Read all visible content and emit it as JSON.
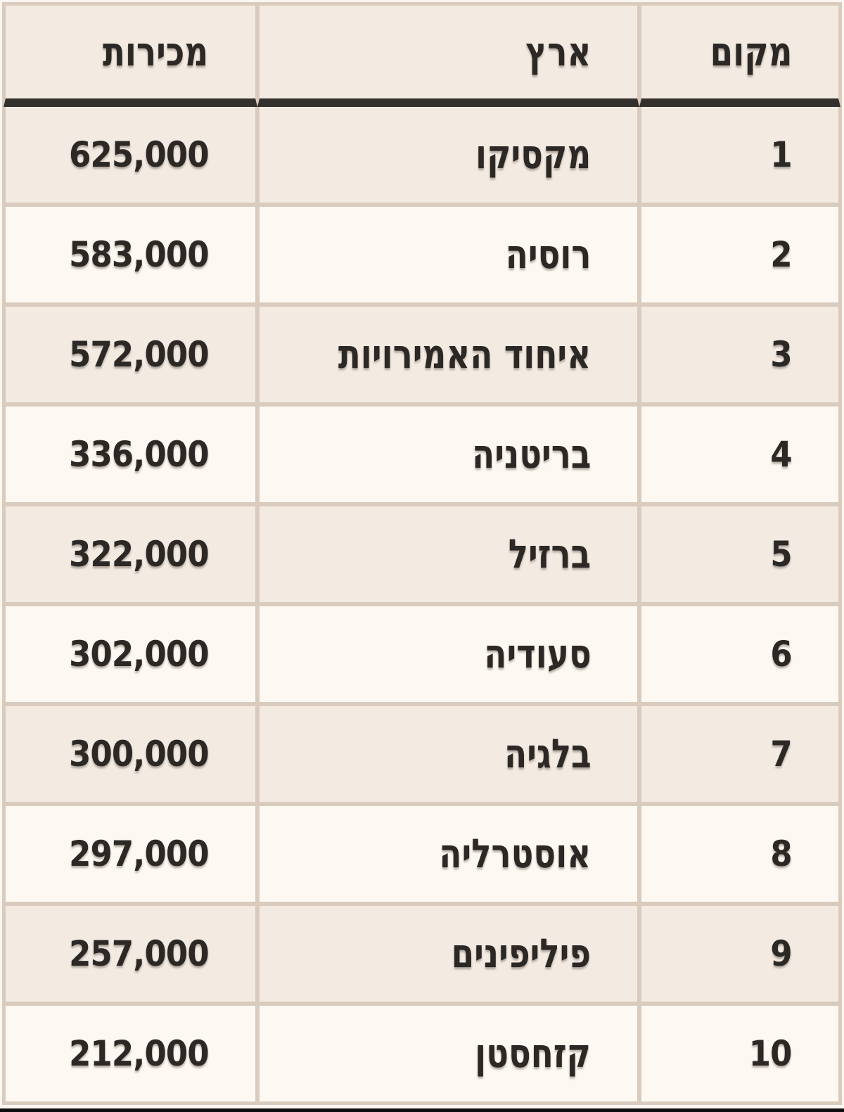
{
  "page": {
    "background_color": "#fbf6ef",
    "bottom_edge_bar_color": "#0d0d0d"
  },
  "table": {
    "direction": "rtl",
    "colors": {
      "row_cream": "#f3eae2",
      "row_white": "#fdf9f2",
      "cell_border": "#d9cbbd",
      "header_underline": "#34302d",
      "text": "#2b2825"
    },
    "headers": {
      "rank": "מקום",
      "country": "ארץ",
      "sales": "מכירות"
    },
    "rows": [
      {
        "rank": "1",
        "country": "מקסיקו",
        "sales": "625,000"
      },
      {
        "rank": "2",
        "country": "רוסיה",
        "sales": "583,000"
      },
      {
        "rank": "3",
        "country": "איחוד האמירויות",
        "sales": "572,000"
      },
      {
        "rank": "4",
        "country": "בריטניה",
        "sales": "336,000"
      },
      {
        "rank": "5",
        "country": "ברזיל",
        "sales": "322,000"
      },
      {
        "rank": "6",
        "country": "סעודיה",
        "sales": "302,000"
      },
      {
        "rank": "7",
        "country": "בלגיה",
        "sales": "300,000"
      },
      {
        "rank": "8",
        "country": "אוסטרליה",
        "sales": "297,000"
      },
      {
        "rank": "9",
        "country": "פיליפינים",
        "sales": "257,000"
      },
      {
        "rank": "10",
        "country": "קזחסטן",
        "sales": "212,000"
      }
    ]
  },
  "chart_data": {
    "type": "table",
    "columns": [
      "מקום",
      "ארץ",
      "מכירות"
    ],
    "rows": [
      [
        1,
        "מקסיקו",
        625000
      ],
      [
        2,
        "רוסיה",
        583000
      ],
      [
        3,
        "איחוד האמירויות",
        572000
      ],
      [
        4,
        "בריטניה",
        336000
      ],
      [
        5,
        "ברזיל",
        322000
      ],
      [
        6,
        "סעודיה",
        302000
      ],
      [
        7,
        "בלגיה",
        300000
      ],
      [
        8,
        "אוסטרליה",
        297000
      ],
      [
        9,
        "פיליפינים",
        257000
      ],
      [
        10,
        "קזחסטן",
        212000
      ]
    ]
  }
}
